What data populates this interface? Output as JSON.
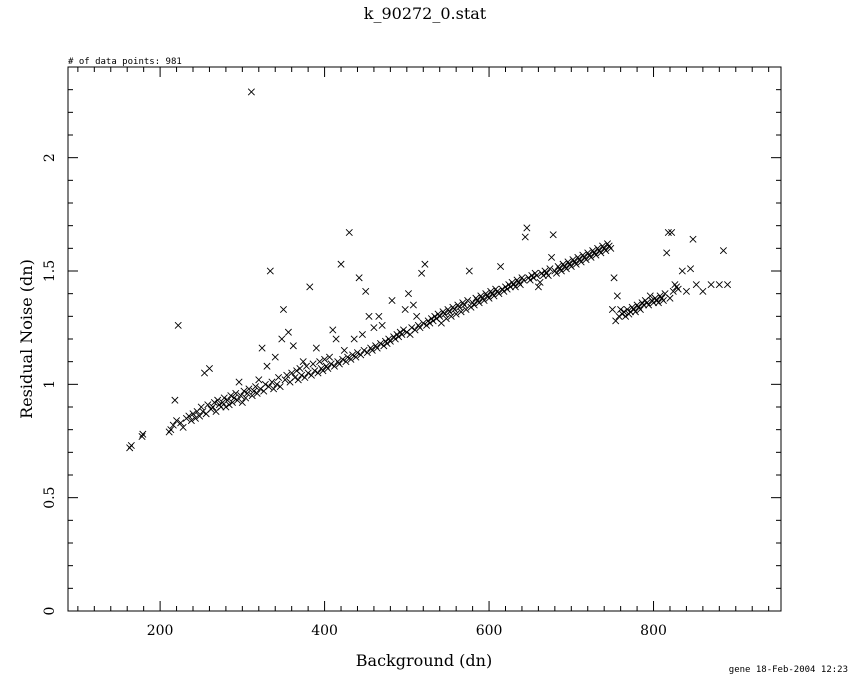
{
  "chart_data": {
    "type": "scatter",
    "title": "k_90272_0.stat",
    "xlabel": "Background (dn)",
    "ylabel": "Residual Noise (dn)",
    "xlim": [
      88,
      955
    ],
    "ylim": [
      0,
      2.4
    ],
    "xticks": [
      "200",
      "400",
      "600",
      "800"
    ],
    "yticks": [
      "0",
      "0.5",
      "1",
      "1.5",
      "2"
    ],
    "annotation_top_left": "# of data points: 981",
    "footer": "gene 18-Feb-2004 12:23",
    "marker": "x",
    "points": [
      [
        163,
        0.72
      ],
      [
        165,
        0.73
      ],
      [
        178,
        0.77
      ],
      [
        179,
        0.78
      ],
      [
        211,
        0.79
      ],
      [
        213,
        0.8
      ],
      [
        216,
        0.82
      ],
      [
        218,
        0.93
      ],
      [
        220,
        0.84
      ],
      [
        222,
        1.26
      ],
      [
        225,
        0.83
      ],
      [
        228,
        0.81
      ],
      [
        232,
        0.85
      ],
      [
        235,
        0.86
      ],
      [
        238,
        0.84
      ],
      [
        240,
        0.87
      ],
      [
        243,
        0.85
      ],
      [
        245,
        0.88
      ],
      [
        248,
        0.86
      ],
      [
        250,
        0.9
      ],
      [
        252,
        0.88
      ],
      [
        254,
        1.05
      ],
      [
        256,
        0.87
      ],
      [
        258,
        0.91
      ],
      [
        260,
        1.07
      ],
      [
        262,
        0.89
      ],
      [
        264,
        0.9
      ],
      [
        266,
        0.92
      ],
      [
        268,
        0.88
      ],
      [
        270,
        0.93
      ],
      [
        272,
        0.91
      ],
      [
        274,
        0.9
      ],
      [
        276,
        0.92
      ],
      [
        278,
        0.94
      ],
      [
        280,
        0.9
      ],
      [
        282,
        0.93
      ],
      [
        284,
        0.91
      ],
      [
        286,
        0.95
      ],
      [
        288,
        0.92
      ],
      [
        290,
        0.94
      ],
      [
        292,
        0.96
      ],
      [
        294,
        0.93
      ],
      [
        296,
        1.01
      ],
      [
        298,
        0.95
      ],
      [
        300,
        0.92
      ],
      [
        302,
        0.97
      ],
      [
        304,
        0.94
      ],
      [
        306,
        0.96
      ],
      [
        308,
        0.98
      ],
      [
        311,
        2.29
      ],
      [
        312,
        0.95
      ],
      [
        314,
        0.97
      ],
      [
        316,
        0.99
      ],
      [
        318,
        0.96
      ],
      [
        320,
        1.02
      ],
      [
        322,
        0.98
      ],
      [
        324,
        1.16
      ],
      [
        326,
        0.97
      ],
      [
        328,
        1.0
      ],
      [
        330,
        1.08
      ],
      [
        332,
        0.99
      ],
      [
        334,
        1.5
      ],
      [
        336,
        1.01
      ],
      [
        338,
        0.98
      ],
      [
        340,
        1.12
      ],
      [
        342,
        1.0
      ],
      [
        344,
        1.03
      ],
      [
        346,
        0.99
      ],
      [
        348,
        1.2
      ],
      [
        350,
        1.33
      ],
      [
        352,
        1.02
      ],
      [
        354,
        1.04
      ],
      [
        356,
        1.23
      ],
      [
        358,
        1.01
      ],
      [
        360,
        1.05
      ],
      [
        362,
        1.17
      ],
      [
        364,
        1.03
      ],
      [
        366,
        1.06
      ],
      [
        368,
        1.02
      ],
      [
        370,
        1.07
      ],
      [
        372,
        1.04
      ],
      [
        374,
        1.1
      ],
      [
        376,
        1.03
      ],
      [
        378,
        1.08
      ],
      [
        380,
        1.05
      ],
      [
        382,
        1.43
      ],
      [
        384,
        1.04
      ],
      [
        386,
        1.09
      ],
      [
        388,
        1.06
      ],
      [
        390,
        1.16
      ],
      [
        392,
        1.05
      ],
      [
        394,
        1.1
      ],
      [
        396,
        1.07
      ],
      [
        398,
        1.06
      ],
      [
        400,
        1.11
      ],
      [
        402,
        1.08
      ],
      [
        404,
        1.07
      ],
      [
        406,
        1.12
      ],
      [
        408,
        1.09
      ],
      [
        410,
        1.24
      ],
      [
        412,
        1.08
      ],
      [
        414,
        1.2
      ],
      [
        416,
        1.1
      ],
      [
        418,
        1.09
      ],
      [
        420,
        1.53
      ],
      [
        422,
        1.11
      ],
      [
        424,
        1.15
      ],
      [
        426,
        1.1
      ],
      [
        428,
        1.12
      ],
      [
        430,
        1.67
      ],
      [
        432,
        1.11
      ],
      [
        434,
        1.13
      ],
      [
        436,
        1.2
      ],
      [
        438,
        1.12
      ],
      [
        440,
        1.14
      ],
      [
        442,
        1.47
      ],
      [
        444,
        1.13
      ],
      [
        446,
        1.22
      ],
      [
        448,
        1.15
      ],
      [
        450,
        1.41
      ],
      [
        452,
        1.14
      ],
      [
        454,
        1.3
      ],
      [
        456,
        1.16
      ],
      [
        458,
        1.15
      ],
      [
        460,
        1.25
      ],
      [
        462,
        1.17
      ],
      [
        464,
        1.16
      ],
      [
        466,
        1.3
      ],
      [
        468,
        1.18
      ],
      [
        470,
        1.26
      ],
      [
        472,
        1.17
      ],
      [
        474,
        1.19
      ],
      [
        476,
        1.18
      ],
      [
        478,
        1.2
      ],
      [
        480,
        1.19
      ],
      [
        482,
        1.37
      ],
      [
        484,
        1.21
      ],
      [
        486,
        1.2
      ],
      [
        488,
        1.22
      ],
      [
        490,
        1.21
      ],
      [
        492,
        1.23
      ],
      [
        494,
        1.22
      ],
      [
        496,
        1.24
      ],
      [
        498,
        1.33
      ],
      [
        500,
        1.23
      ],
      [
        502,
        1.4
      ],
      [
        504,
        1.22
      ],
      [
        506,
        1.25
      ],
      [
        508,
        1.35
      ],
      [
        510,
        1.24
      ],
      [
        512,
        1.3
      ],
      [
        514,
        1.26
      ],
      [
        516,
        1.25
      ],
      [
        518,
        1.49
      ],
      [
        520,
        1.27
      ],
      [
        522,
        1.53
      ],
      [
        524,
        1.26
      ],
      [
        526,
        1.28
      ],
      [
        528,
        1.27
      ],
      [
        530,
        1.29
      ],
      [
        532,
        1.28
      ],
      [
        534,
        1.3
      ],
      [
        536,
        1.29
      ],
      [
        538,
        1.31
      ],
      [
        540,
        1.3
      ],
      [
        542,
        1.27
      ],
      [
        544,
        1.32
      ],
      [
        546,
        1.31
      ],
      [
        548,
        1.29
      ],
      [
        550,
        1.33
      ],
      [
        552,
        1.32
      ],
      [
        554,
        1.3
      ],
      [
        556,
        1.34
      ],
      [
        558,
        1.33
      ],
      [
        560,
        1.31
      ],
      [
        562,
        1.35
      ],
      [
        564,
        1.34
      ],
      [
        566,
        1.32
      ],
      [
        568,
        1.36
      ],
      [
        570,
        1.35
      ],
      [
        572,
        1.33
      ],
      [
        574,
        1.37
      ],
      [
        576,
        1.5
      ],
      [
        578,
        1.34
      ],
      [
        580,
        1.36
      ],
      [
        582,
        1.35
      ],
      [
        584,
        1.38
      ],
      [
        586,
        1.37
      ],
      [
        588,
        1.36
      ],
      [
        590,
        1.39
      ],
      [
        592,
        1.38
      ],
      [
        594,
        1.37
      ],
      [
        596,
        1.4
      ],
      [
        598,
        1.39
      ],
      [
        600,
        1.38
      ],
      [
        602,
        1.41
      ],
      [
        604,
        1.4
      ],
      [
        606,
        1.39
      ],
      [
        608,
        1.42
      ],
      [
        610,
        1.41
      ],
      [
        612,
        1.4
      ],
      [
        614,
        1.52
      ],
      [
        616,
        1.42
      ],
      [
        618,
        1.41
      ],
      [
        620,
        1.43
      ],
      [
        622,
        1.42
      ],
      [
        624,
        1.44
      ],
      [
        626,
        1.43
      ],
      [
        628,
        1.45
      ],
      [
        630,
        1.44
      ],
      [
        632,
        1.43
      ],
      [
        634,
        1.46
      ],
      [
        636,
        1.45
      ],
      [
        638,
        1.44
      ],
      [
        640,
        1.47
      ],
      [
        642,
        1.46
      ],
      [
        644,
        1.65
      ],
      [
        646,
        1.69
      ],
      [
        648,
        1.47
      ],
      [
        650,
        1.46
      ],
      [
        652,
        1.48
      ],
      [
        654,
        1.47
      ],
      [
        656,
        1.49
      ],
      [
        658,
        1.48
      ],
      [
        660,
        1.43
      ],
      [
        662,
        1.45
      ],
      [
        664,
        1.49
      ],
      [
        666,
        1.48
      ],
      [
        668,
        1.5
      ],
      [
        670,
        1.49
      ],
      [
        672,
        1.48
      ],
      [
        674,
        1.51
      ],
      [
        676,
        1.56
      ],
      [
        678,
        1.66
      ],
      [
        680,
        1.5
      ],
      [
        682,
        1.49
      ],
      [
        684,
        1.52
      ],
      [
        686,
        1.51
      ],
      [
        688,
        1.5
      ],
      [
        690,
        1.53
      ],
      [
        692,
        1.52
      ],
      [
        694,
        1.51
      ],
      [
        696,
        1.54
      ],
      [
        698,
        1.53
      ],
      [
        700,
        1.52
      ],
      [
        702,
        1.55
      ],
      [
        704,
        1.54
      ],
      [
        706,
        1.53
      ],
      [
        708,
        1.56
      ],
      [
        710,
        1.55
      ],
      [
        712,
        1.54
      ],
      [
        714,
        1.57
      ],
      [
        716,
        1.56
      ],
      [
        718,
        1.55
      ],
      [
        720,
        1.58
      ],
      [
        722,
        1.57
      ],
      [
        724,
        1.56
      ],
      [
        726,
        1.59
      ],
      [
        728,
        1.58
      ],
      [
        730,
        1.57
      ],
      [
        732,
        1.6
      ],
      [
        734,
        1.59
      ],
      [
        736,
        1.58
      ],
      [
        738,
        1.61
      ],
      [
        740,
        1.6
      ],
      [
        742,
        1.59
      ],
      [
        744,
        1.62
      ],
      [
        746,
        1.61
      ],
      [
        748,
        1.6
      ],
      [
        750,
        1.33
      ],
      [
        752,
        1.47
      ],
      [
        754,
        1.28
      ],
      [
        756,
        1.39
      ],
      [
        758,
        1.3
      ],
      [
        760,
        1.33
      ],
      [
        762,
        1.31
      ],
      [
        764,
        1.32
      ],
      [
        766,
        1.3
      ],
      [
        768,
        1.33
      ],
      [
        770,
        1.31
      ],
      [
        772,
        1.32
      ],
      [
        774,
        1.34
      ],
      [
        776,
        1.33
      ],
      [
        778,
        1.32
      ],
      [
        780,
        1.35
      ],
      [
        782,
        1.34
      ],
      [
        784,
        1.33
      ],
      [
        786,
        1.36
      ],
      [
        788,
        1.35
      ],
      [
        790,
        1.37
      ],
      [
        792,
        1.36
      ],
      [
        794,
        1.35
      ],
      [
        796,
        1.39
      ],
      [
        798,
        1.37
      ],
      [
        800,
        1.36
      ],
      [
        802,
        1.38
      ],
      [
        804,
        1.37
      ],
      [
        806,
        1.36
      ],
      [
        808,
        1.39
      ],
      [
        810,
        1.38
      ],
      [
        812,
        1.37
      ],
      [
        814,
        1.4
      ],
      [
        816,
        1.58
      ],
      [
        818,
        1.67
      ],
      [
        820,
        1.38
      ],
      [
        822,
        1.67
      ],
      [
        824,
        1.41
      ],
      [
        826,
        1.44
      ],
      [
        828,
        1.43
      ],
      [
        830,
        1.42
      ],
      [
        835,
        1.5
      ],
      [
        840,
        1.41
      ],
      [
        845,
        1.51
      ],
      [
        848,
        1.64
      ],
      [
        852,
        1.44
      ],
      [
        860,
        1.41
      ],
      [
        870,
        1.44
      ],
      [
        880,
        1.44
      ],
      [
        885,
        1.59
      ],
      [
        890,
        1.44
      ]
    ]
  }
}
